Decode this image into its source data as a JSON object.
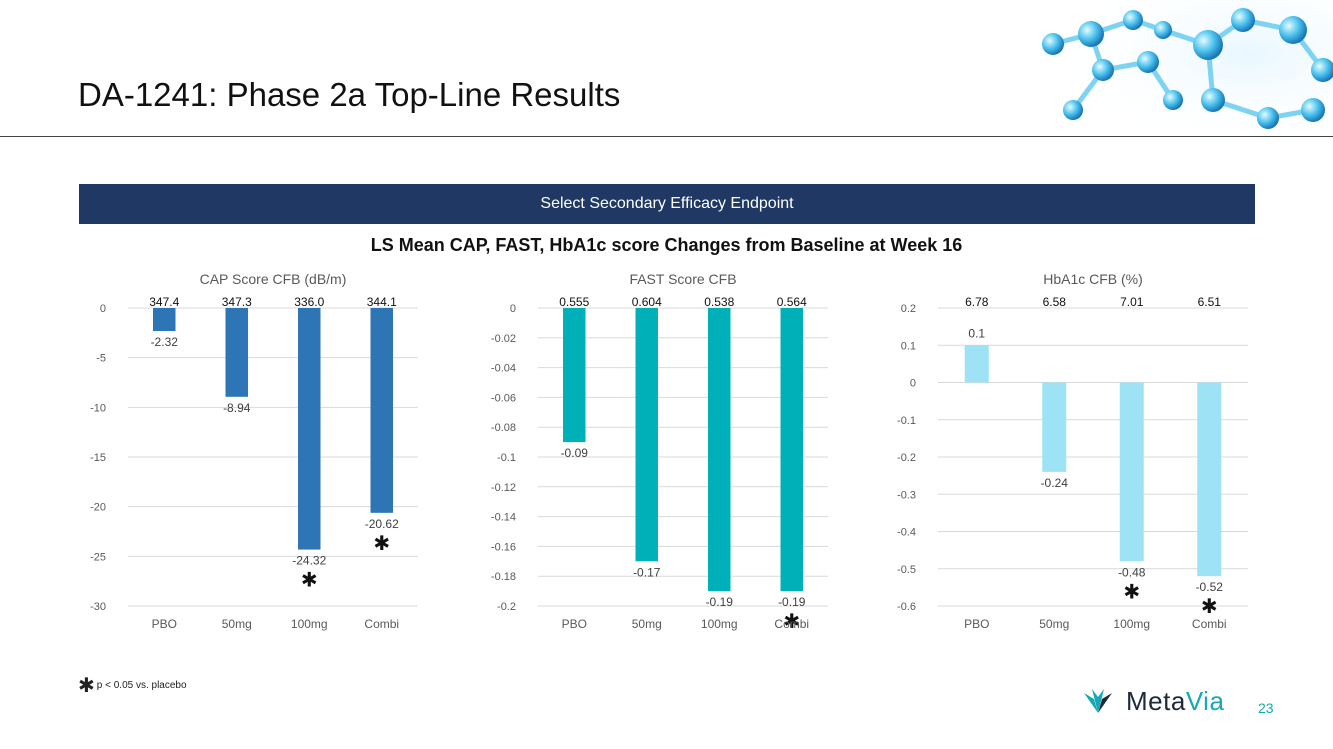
{
  "slide": {
    "title": "DA-1241: Phase 2a Top-Line Results",
    "banner": "Select Secondary Efficacy Endpoint",
    "subtitle": "LS Mean CAP, FAST, HbA1c score Changes from Baseline at Week 16",
    "footnote": "p < 0.05 vs. placebo",
    "footnote_symbol": "✱",
    "logo_text_dark": "Meta",
    "logo_text_accent": "Via",
    "page_number": "23"
  },
  "colors": {
    "banner": "#1f3864",
    "cap_bar": "#2e75b6",
    "fast_bar": "#00b0b9",
    "hba1c_bar": "#9ee3f5",
    "accent": "#15a9b5"
  },
  "chart_data": [
    {
      "type": "bar",
      "title": "CAP Score CFB (dB/m)",
      "categories": [
        "PBO",
        "50mg",
        "100mg",
        "Combi"
      ],
      "values": [
        -2.32,
        -8.94,
        -24.32,
        -20.62
      ],
      "value_labels": [
        "-2.32",
        "-8.94",
        "-24.32",
        "-20.62"
      ],
      "baseline_labels": [
        "347.4",
        "347.3",
        "336.0",
        "344.1"
      ],
      "significant": [
        false,
        false,
        true,
        true
      ],
      "ylim": [
        -30,
        0
      ],
      "yticks": [
        0,
        -5,
        -10,
        -15,
        -20,
        -25,
        -30
      ],
      "ytick_labels": [
        "0",
        "-5",
        "-10",
        "-15",
        "-20",
        "-25",
        "-30"
      ],
      "grid": true
    },
    {
      "type": "bar",
      "title": "FAST Score CFB",
      "categories": [
        "PBO",
        "50mg",
        "100mg",
        "Combi"
      ],
      "values": [
        -0.09,
        -0.17,
        -0.19,
        -0.19
      ],
      "value_labels": [
        "-0.09",
        "-0.17",
        "-0.19",
        "-0.19"
      ],
      "baseline_labels": [
        "0.555",
        "0.604",
        "0.538",
        "0.564"
      ],
      "significant": [
        false,
        false,
        false,
        true
      ],
      "ylim": [
        -0.2,
        0
      ],
      "yticks": [
        0,
        -0.02,
        -0.04,
        -0.06,
        -0.08,
        -0.1,
        -0.12,
        -0.14,
        -0.16,
        -0.18,
        -0.2
      ],
      "ytick_labels": [
        "0",
        "-0.02",
        "-0.04",
        "-0.06",
        "-0.08",
        "-0.1",
        "-0.12",
        "-0.14",
        "-0.16",
        "-0.18",
        "-0.2"
      ],
      "grid": true
    },
    {
      "type": "bar",
      "title": "HbA1c CFB (%)",
      "categories": [
        "PBO",
        "50mg",
        "100mg",
        "Combi"
      ],
      "values": [
        0.1,
        -0.24,
        -0.48,
        -0.52
      ],
      "value_labels": [
        "0.1",
        "-0.24",
        "-0.48",
        "-0.52"
      ],
      "baseline_labels": [
        "6.78",
        "6.58",
        "7.01",
        "6.51"
      ],
      "significant": [
        false,
        false,
        true,
        true
      ],
      "ylim": [
        -0.6,
        0.2
      ],
      "yticks": [
        0.2,
        0.1,
        0,
        -0.1,
        -0.2,
        -0.3,
        -0.4,
        -0.5,
        -0.6
      ],
      "ytick_labels": [
        "0.2",
        "0.1",
        "0",
        "-0.1",
        "-0.2",
        "-0.3",
        "-0.4",
        "-0.5",
        "-0.6"
      ],
      "grid": true
    }
  ]
}
